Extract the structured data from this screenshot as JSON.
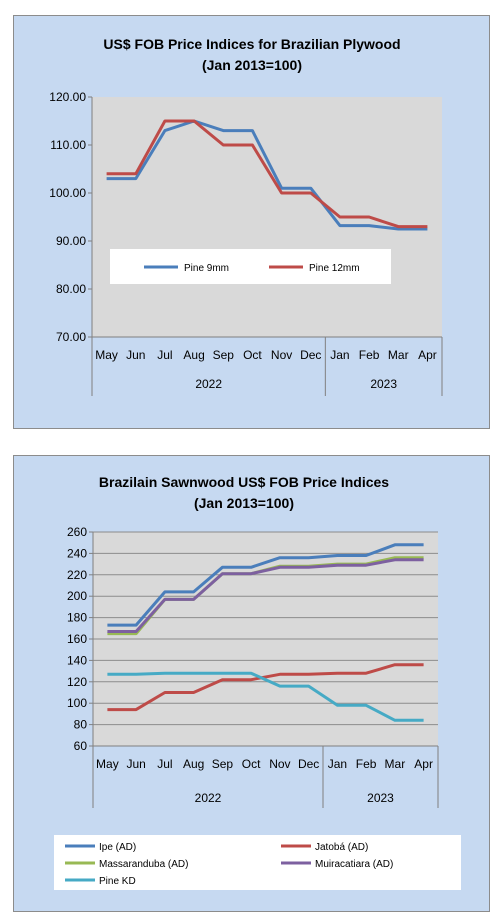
{
  "chart_data": [
    {
      "type": "line",
      "title": "US$ FOB Price Indices for Brazilian Plywood",
      "subtitle": "(Jan 2013=100)",
      "categories": [
        "May",
        "Jun",
        "Jul",
        "Aug",
        "Sep",
        "Oct",
        "Nov",
        "Dec",
        "Jan",
        "Feb",
        "Mar",
        "Apr"
      ],
      "year_groups": [
        {
          "label": "2022",
          "count": 8
        },
        {
          "label": "2023",
          "count": 4
        }
      ],
      "ylim": [
        70,
        120
      ],
      "yticks": [
        70,
        80,
        90,
        100,
        110,
        120
      ],
      "ytick_labels": [
        "70.00",
        "80.00",
        "90.00",
        "100.00",
        "110.00",
        "120.00"
      ],
      "grid": false,
      "legend_position": "inside-bottom",
      "series": [
        {
          "name": "Pine 9mm",
          "color": "#4a7ebb",
          "values": [
            103,
            103,
            113,
            115,
            113,
            113,
            101,
            101,
            93.2,
            93.2,
            92.5,
            92.5
          ]
        },
        {
          "name": "Pine 12mm",
          "color": "#be4b48",
          "values": [
            104,
            104,
            115,
            115,
            110,
            110,
            100,
            100,
            95,
            95,
            93,
            93
          ]
        }
      ]
    },
    {
      "type": "line",
      "title": "Brazilain Sawnwood US$ FOB Price Indices",
      "subtitle": "(Jan 2013=100)",
      "categories": [
        "May",
        "Jun",
        "Jul",
        "Aug",
        "Sep",
        "Oct",
        "Nov",
        "Dec",
        "Jan",
        "Feb",
        "Mar",
        "Apr"
      ],
      "year_groups": [
        {
          "label": "2022",
          "count": 8
        },
        {
          "label": "2023",
          "count": 4
        }
      ],
      "ylim": [
        60,
        260
      ],
      "yticks": [
        60,
        80,
        100,
        120,
        140,
        160,
        180,
        200,
        220,
        240,
        260
      ],
      "ytick_labels": [
        "60",
        "80",
        "100",
        "120",
        "140",
        "160",
        "180",
        "200",
        "220",
        "240",
        "260"
      ],
      "grid": true,
      "legend_position": "bottom",
      "series": [
        {
          "name": "Ipe (AD)",
          "color": "#4a7ebb",
          "values": [
            173,
            173,
            204,
            204,
            227,
            227,
            236,
            236,
            238,
            238,
            248,
            248
          ]
        },
        {
          "name": "Jatobá (AD)",
          "color": "#be4b48",
          "values": [
            94,
            94,
            110,
            110,
            122,
            122,
            127,
            127,
            128,
            128,
            136,
            136
          ]
        },
        {
          "name": "Massaranduba (AD)",
          "color": "#98b954",
          "values": [
            165,
            165,
            197,
            197,
            221,
            221,
            228,
            228,
            230,
            230,
            236,
            236
          ]
        },
        {
          "name": "Muiracatiara (AD)",
          "color": "#7d60a0",
          "values": [
            167,
            167,
            197,
            197,
            221,
            221,
            227,
            227,
            229,
            229,
            234,
            234
          ]
        },
        {
          "name": "Pine KD",
          "color": "#46aac5",
          "values": [
            127,
            127,
            128,
            128,
            128,
            128,
            116,
            116,
            98,
            98,
            84,
            84
          ]
        }
      ]
    }
  ]
}
